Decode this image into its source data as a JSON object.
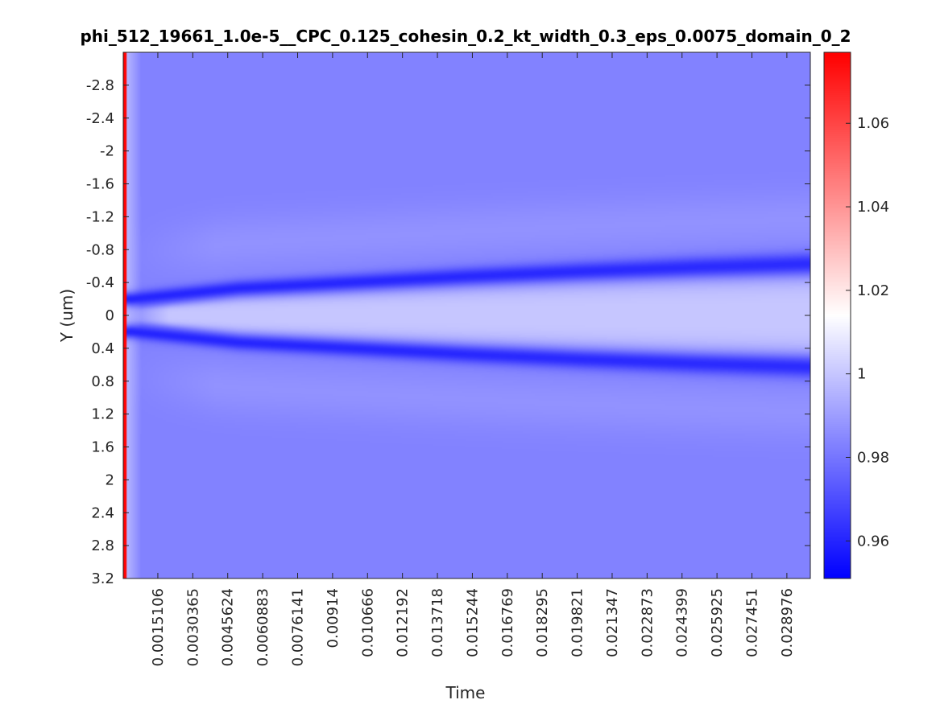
{
  "chart_data": {
    "type": "heatmap",
    "title": "phi_512_19661_1.0e-5__CPC_0.125_cohesin_0.2_kt_width_0.3_eps_0.0075_domain_0_2",
    "xlabel": "Time",
    "ylabel": "Y (um)",
    "xlim": [
      0,
      0.03
    ],
    "ylim": [
      -3.2,
      3.2
    ],
    "y_reversed": true,
    "x_ticks": [
      "0.0015106",
      "0.0030365",
      "0.0045624",
      "0.0060883",
      "0.0076141",
      "0.00914",
      "0.010666",
      "0.012192",
      "0.013718",
      "0.015244",
      "0.016769",
      "0.018295",
      "0.019821",
      "0.021347",
      "0.022873",
      "0.024399",
      "0.025925",
      "0.027451",
      "0.028976"
    ],
    "x_tick_values": [
      0.0015106,
      0.0030365,
      0.0045624,
      0.0060883,
      0.0076141,
      0.00914,
      0.010666,
      0.012192,
      0.013718,
      0.015244,
      0.016769,
      0.018295,
      0.019821,
      0.021347,
      0.022873,
      0.024399,
      0.025925,
      0.027451,
      0.028976
    ],
    "y_ticks": [
      "-2.8",
      "-2.4",
      "-2",
      "-1.6",
      "-1.2",
      "-0.8",
      "-0.4",
      "0",
      "0.4",
      "0.8",
      "1.2",
      "1.6",
      "2",
      "2.4",
      "2.8",
      "3.2"
    ],
    "y_tick_values": [
      -2.8,
      -2.4,
      -2,
      -1.6,
      -1.2,
      -0.8,
      -0.4,
      0,
      0.4,
      0.8,
      1.2,
      1.6,
      2,
      2.4,
      2.8,
      3.2
    ],
    "colorbar": {
      "range": [
        0.951,
        1.077
      ],
      "ticks": [
        "1.06",
        "1.04",
        "1.02",
        "1",
        "0.98",
        "0.96"
      ],
      "tick_values": [
        1.06,
        1.04,
        1.02,
        1.0,
        0.98,
        0.96
      ],
      "colors": {
        "low": "#0000ff",
        "mid": "#ffffff",
        "high": "#ff0000"
      },
      "mid_value": 1.014
    },
    "field": {
      "initial_value": 1.077,
      "background_value": 0.983,
      "center_value": 1.0,
      "band_min_value": 0.96,
      "band_center_y": [
        {
          "t": 0.0004,
          "y": 0.2
        },
        {
          "t": 0.005,
          "y": 0.33
        },
        {
          "t": 0.01,
          "y": 0.4
        },
        {
          "t": 0.015,
          "y": 0.47
        },
        {
          "t": 0.02,
          "y": 0.53
        },
        {
          "t": 0.025,
          "y": 0.58
        },
        {
          "t": 0.03,
          "y": 0.62
        }
      ]
    },
    "grid": false
  }
}
